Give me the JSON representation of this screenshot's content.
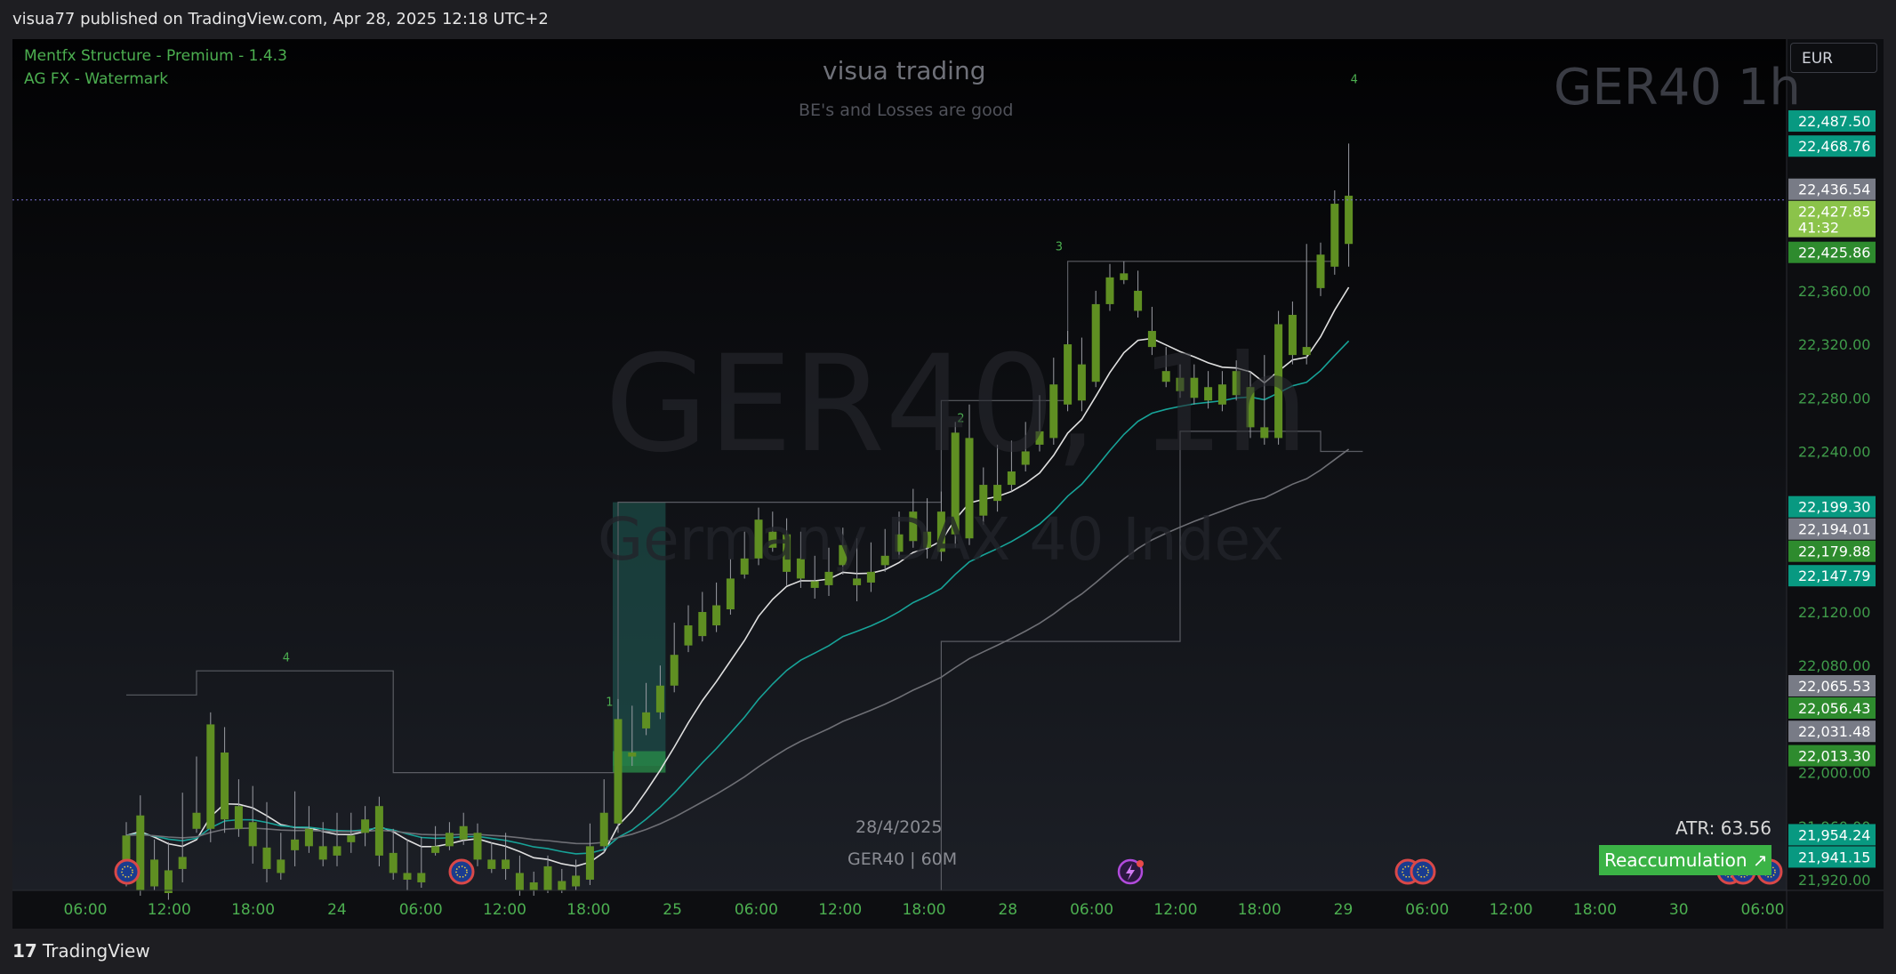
{
  "header": {
    "published": "visua77 published on TradingView.com, Apr 28, 2025 12:18 UTC+2"
  },
  "footer": {
    "brand": "TradingView",
    "logo_glyph": "17"
  },
  "indicators": [
    "Mentfx Structure - Premium - 1.4.3",
    "AG FX - Watermark"
  ],
  "watermark": {
    "top_title": "visua trading",
    "top_sub": "BE's and Losses are good",
    "symbol": "GER40 1h",
    "big": "GER40, 1h",
    "mid": "Germany DAX 40 Index",
    "date": "28/4/2025",
    "symbol_tf": "GER40 | 60M"
  },
  "currency": "EUR",
  "atr": "ATR: 63.56",
  "reaccumulation": "Reaccumulation",
  "structure_labels": {
    "l1": "1",
    "l2": "2",
    "l3": "3",
    "l4a": "4",
    "l4b": "4"
  },
  "price_tags": [
    {
      "label": "22,487.50",
      "price": 22487.5,
      "color": "#089981"
    },
    {
      "label": "22,468.76",
      "price": 22468.76,
      "color": "#089981"
    },
    {
      "label": "22,436.54",
      "price": 22436.54,
      "color": "#787b86"
    },
    {
      "label": "22,427.85",
      "price": 22427.85,
      "color": "#8bc34a"
    },
    {
      "label": "41:32",
      "price": 22427.85,
      "color": "#8bc34a"
    },
    {
      "label": "22,425.86",
      "price": 22425.86,
      "color": "#2e8b2e"
    },
    {
      "label": "22,199.30",
      "price": 22199.3,
      "color": "#089981"
    },
    {
      "label": "22,194.01",
      "price": 22194.01,
      "color": "#787b86"
    },
    {
      "label": "22,179.88",
      "price": 22179.88,
      "color": "#2e8b2e"
    },
    {
      "label": "22,147.79",
      "price": 22147.79,
      "color": "#089981"
    },
    {
      "label": "22,065.53",
      "price": 22065.53,
      "color": "#787b86"
    },
    {
      "label": "22,056.43",
      "price": 22056.43,
      "color": "#2e8b2e"
    },
    {
      "label": "22,031.48",
      "price": 22031.48,
      "color": "#787b86"
    },
    {
      "label": "22,013.30",
      "price": 22013.3,
      "color": "#2e8b2e"
    },
    {
      "label": "21,954.24",
      "price": 21954.24,
      "color": "#089981"
    },
    {
      "label": "21,941.15",
      "price": 21941.15,
      "color": "#089981"
    }
  ],
  "chart_data": {
    "type": "candlestick",
    "symbol": "GER40",
    "timeframe": "1h",
    "y_ticks": [
      22360,
      22320,
      22280,
      22240,
      22120,
      22080,
      22000,
      21960,
      21920
    ],
    "y_tick_labels": [
      "22,360.00",
      "22,320.00",
      "22,280.00",
      "22,240.00",
      "22,120.00",
      "22,080.00",
      "22,000.00",
      "21,960.00",
      "21,920.00"
    ],
    "ylim": [
      21912,
      22548
    ],
    "x_tick_labels": [
      "06:00",
      "12:00",
      "18:00",
      "24",
      "06:00",
      "12:00",
      "18:00",
      "25",
      "06:00",
      "12:00",
      "18:00",
      "28",
      "06:00",
      "12:00",
      "18:00",
      "29",
      "06:00",
      "12:00",
      "18:00",
      "30",
      "06:00"
    ],
    "current_price": 22427.85,
    "candles": [
      [
        21953,
        21963,
        21925,
        21915
      ],
      [
        21968,
        21983,
        21912,
        21908
      ],
      [
        21935,
        21950,
        21915,
        21912
      ],
      [
        21927,
        21948,
        21910,
        21905
      ],
      [
        21937,
        21985,
        21928,
        21918
      ],
      [
        21970,
        22012,
        21958,
        21955
      ],
      [
        22036,
        22045,
        21958,
        21948
      ],
      [
        22015,
        22034,
        21965,
        21955
      ],
      [
        21975,
        21995,
        21958,
        21952
      ],
      [
        21963,
        21990,
        21945,
        21932
      ],
      [
        21944,
        21978,
        21928,
        21918
      ],
      [
        21935,
        21955,
        21925,
        21920
      ],
      [
        21950,
        21986,
        21942,
        21930
      ],
      [
        21958,
        21975,
        21945,
        21940
      ],
      [
        21945,
        21963,
        21935,
        21930
      ],
      [
        21945,
        21970,
        21938,
        21930
      ],
      [
        21953,
        21970,
        21948,
        21940
      ],
      [
        21965,
        21975,
        21955,
        21945
      ],
      [
        21975,
        21982,
        21938,
        21930
      ],
      [
        21940,
        21958,
        21925,
        21920
      ],
      [
        21925,
        21950,
        21920,
        21912
      ],
      [
        21925,
        21952,
        21918,
        21914
      ],
      [
        21945,
        21960,
        21940,
        21938
      ],
      [
        21955,
        21963,
        21945,
        21942
      ],
      [
        21960,
        21970,
        21950,
        21946
      ],
      [
        21955,
        21962,
        21935,
        21930
      ],
      [
        21935,
        21948,
        21928,
        21925
      ],
      [
        21935,
        21955,
        21928,
        21920
      ],
      [
        21925,
        21938,
        21912,
        21908
      ],
      [
        21918,
        21926,
        21912,
        21908
      ],
      [
        21930,
        21938,
        21912,
        21910
      ],
      [
        21919,
        21928,
        21912,
        21910
      ],
      [
        21923,
        21935,
        21915,
        21912
      ],
      [
        21945,
        21962,
        21920,
        21916
      ],
      [
        21970,
        21995,
        21945,
        21940
      ],
      [
        22040,
        22055,
        21962,
        21955
      ],
      [
        22015,
        22050,
        22012,
        22005
      ],
      [
        22045,
        22067,
        22033,
        22028
      ],
      [
        22065,
        22080,
        22045,
        22040
      ],
      [
        22088,
        22112,
        22065,
        22060
      ],
      [
        22110,
        22125,
        22095,
        22090
      ],
      [
        22120,
        22135,
        22102,
        22098
      ],
      [
        22125,
        22142,
        22110,
        22105
      ],
      [
        22145,
        22160,
        22122,
        22118
      ],
      [
        22160,
        22180,
        22148,
        22145
      ],
      [
        22189,
        22198,
        22160,
        22155
      ],
      [
        22180,
        22195,
        22168,
        22165
      ],
      [
        22178,
        22190,
        22150,
        22140
      ],
      [
        22160,
        22180,
        22145,
        22138
      ],
      [
        22143,
        22162,
        22138,
        22130
      ],
      [
        22150,
        22168,
        22140,
        22132
      ],
      [
        22170,
        22183,
        22155,
        22148
      ],
      [
        22145,
        22175,
        22140,
        22128
      ],
      [
        22150,
        22172,
        22142,
        22135
      ],
      [
        22162,
        22182,
        22155,
        22150
      ],
      [
        22178,
        22195,
        22165,
        22160
      ],
      [
        22195,
        22212,
        22173,
        22168
      ],
      [
        22180,
        22205,
        22168,
        22160
      ],
      [
        22195,
        22210,
        22165,
        22158
      ],
      [
        22254,
        22262,
        22178,
        22168
      ],
      [
        22250,
        22275,
        22175,
        22170
      ],
      [
        22215,
        22228,
        22192,
        22185
      ],
      [
        22215,
        22245,
        22203,
        22195
      ],
      [
        22225,
        22248,
        22215,
        22210
      ],
      [
        22240,
        22262,
        22230,
        22225
      ],
      [
        22255,
        22282,
        22245,
        22240
      ],
      [
        22290,
        22310,
        22250,
        22245
      ],
      [
        22320,
        22330,
        22275,
        22270
      ],
      [
        22305,
        22325,
        22278,
        22270
      ],
      [
        22350,
        22360,
        22292,
        22288
      ],
      [
        22370,
        22380,
        22350,
        22345
      ],
      [
        22373,
        22382,
        22368,
        22365
      ],
      [
        22360,
        22375,
        22345,
        22340
      ],
      [
        22330,
        22348,
        22318,
        22312
      ],
      [
        22300,
        22318,
        22292,
        22288
      ],
      [
        22295,
        22305,
        22285,
        22280
      ],
      [
        22295,
        22305,
        22280,
        22275
      ],
      [
        22288,
        22300,
        22278,
        22272
      ],
      [
        22290,
        22300,
        22275,
        22270
      ],
      [
        22300,
        22308,
        22282,
        22278
      ],
      [
        22288,
        22300,
        22258,
        22250
      ],
      [
        22258,
        22312,
        22250,
        22245
      ],
      [
        22335,
        22345,
        22250,
        22245
      ],
      [
        22342,
        22352,
        22312,
        22305
      ],
      [
        22318,
        22395,
        22312,
        22305
      ],
      [
        22387,
        22396,
        22362,
        22356
      ],
      [
        22425,
        22435,
        22378,
        22372
      ],
      [
        22431,
        22470,
        22395,
        22378
      ]
    ],
    "zones": [
      {
        "type": "demand",
        "price_top": 22202,
        "price_bottom": 22005,
        "color": "#1f5f57"
      },
      {
        "type": "demand-core",
        "price_top": 22016,
        "price_bottom": 22000,
        "color": "#2a8f4a"
      }
    ]
  }
}
